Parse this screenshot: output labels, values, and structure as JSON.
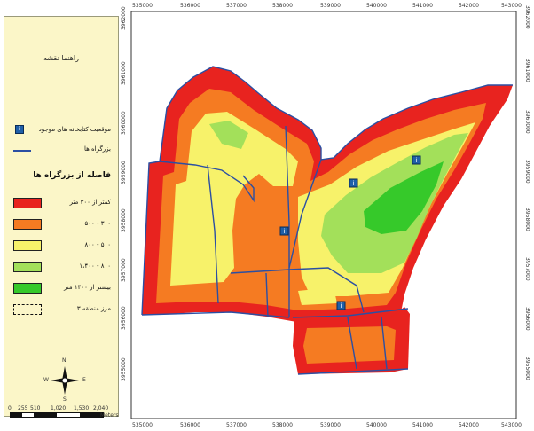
{
  "legend": {
    "title": "راهنما نقشه",
    "libraries_label": "موقعیت کتابخانه های موجود",
    "roads_label": "بزرگراه ها",
    "distance_heading": "فاصله از بزرگراه ها",
    "classes": [
      {
        "label": "کمتر از ۳۰۰ متر",
        "color": "#e8231f"
      },
      {
        "label": "۳۰۰ - ۵۰۰",
        "color": "#f57b22"
      },
      {
        "label": "۵۰۰ - ۸۰۰",
        "color": "#f7f26a"
      },
      {
        "label": "۸۰۰ - ۱،۴۰۰",
        "color": "#a3e05a"
      },
      {
        "label": "بیشتر از ۱۴۰۰ متر",
        "color": "#36c92a"
      }
    ],
    "boundary_label": "مرز منطقه ۳",
    "scale_labels": [
      "0",
      "255",
      "510",
      "1,020",
      "1,530",
      "2,040"
    ],
    "scale_unit": "Meters",
    "north": "N",
    "south": "S",
    "east": "E",
    "west": "W"
  },
  "axes": {
    "x_ticks": [
      "535000",
      "536000",
      "537000",
      "538000",
      "539000",
      "540000",
      "541000",
      "542000",
      "543000"
    ],
    "y_ticks": [
      "3962000",
      "3961000",
      "3960000",
      "3959000",
      "3958000",
      "3957000",
      "3956000",
      "3955000"
    ]
  },
  "colors": {
    "road": "#2b4fa3",
    "library": "#1f5fa8"
  }
}
